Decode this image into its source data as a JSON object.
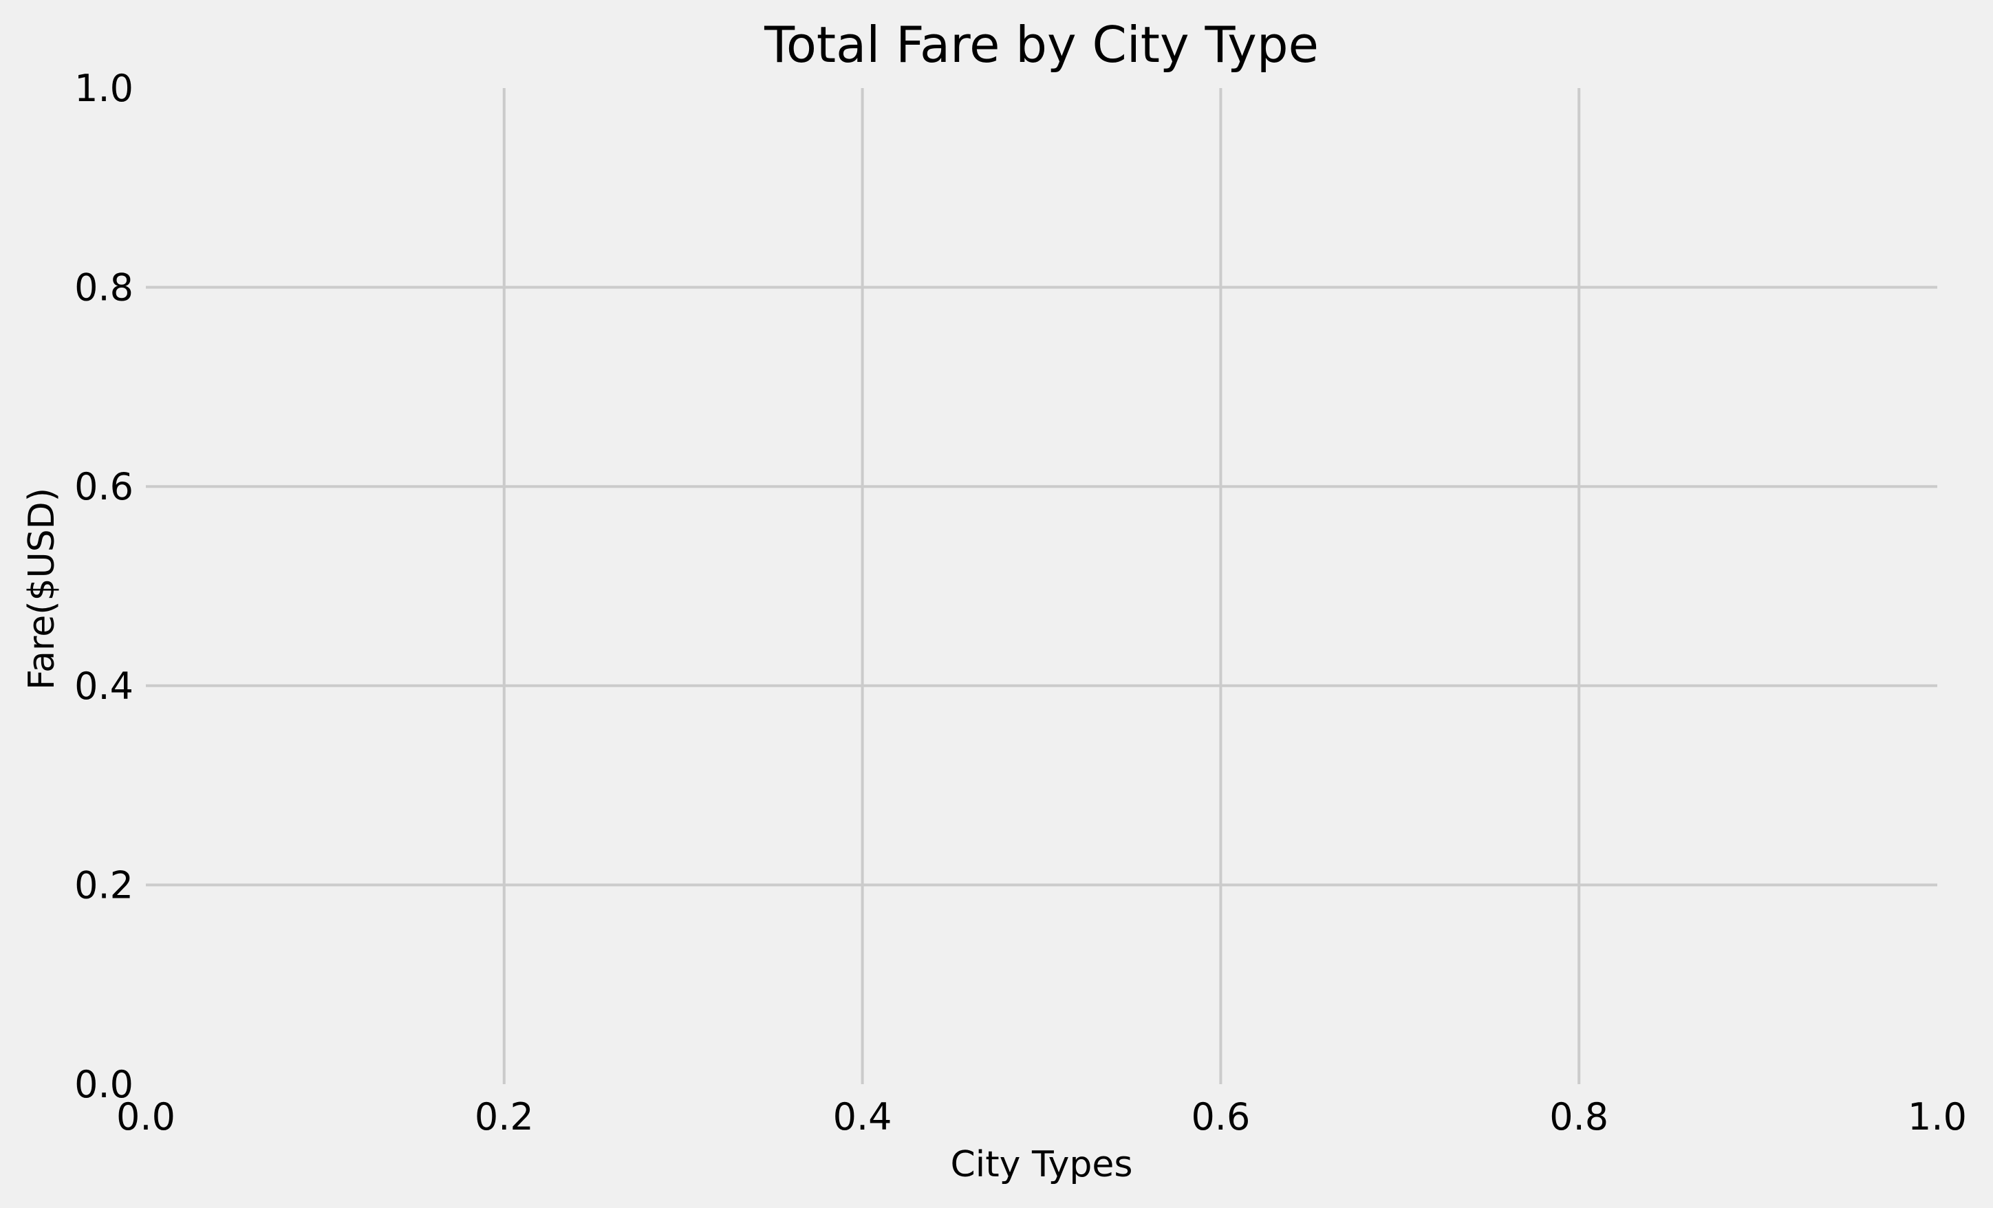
{
  "chart_data": {
    "type": "bar",
    "title": "Total Fare by City Type",
    "xlabel": "City Types",
    "ylabel": "Fare($USD)",
    "categories": [],
    "values": [],
    "xlim": [
      0,
      1
    ],
    "ylim": [
      0,
      1
    ],
    "x_ticks": [
      "0.0",
      "0.2",
      "0.4",
      "0.6",
      "0.8",
      "1.0"
    ],
    "y_ticks": [
      "0.0",
      "0.2",
      "0.4",
      "0.6",
      "0.8",
      "1.0"
    ],
    "grid": true,
    "legend": "none"
  },
  "colors": {
    "background": "#f0f0f0",
    "grid": "#cbcbcb",
    "text": "#000000"
  }
}
